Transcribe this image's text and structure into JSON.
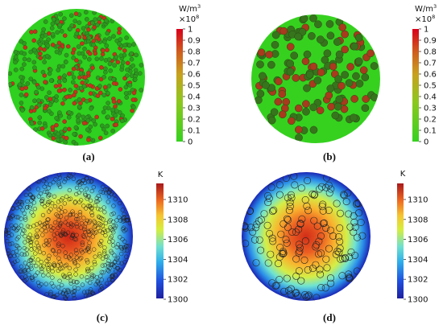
{
  "panels": [
    {
      "id": "a",
      "label": "(a)",
      "unit": "W/m",
      "unit_sup": "3",
      "multiplier": "×10",
      "multiplier_sup": "8",
      "ticks": [
        "1",
        "0.9",
        "0.8",
        "0.7",
        "0.6",
        "0.5",
        "0.4",
        "0.3",
        "0.2",
        "0.1",
        "0"
      ],
      "colors": {
        "background": "#2fd01f",
        "particle_hot": "#c8321e",
        "particle_cool": "#2f9a21"
      }
    },
    {
      "id": "b",
      "label": "(b)",
      "unit": "W/m",
      "unit_sup": "3",
      "multiplier": "×10",
      "multiplier_sup": "8",
      "ticks": [
        "1",
        "0.9",
        "0.8",
        "0.7",
        "0.6",
        "0.5",
        "0.4",
        "0.3",
        "0.2",
        "0.1",
        "0"
      ],
      "colors": {
        "background": "#36d11f",
        "particle_hot": "#a83a1e",
        "particle_cool": "#36751c"
      }
    },
    {
      "id": "c",
      "label": "(c)",
      "unit": "K",
      "ticks": [
        "1310",
        "1308",
        "1306",
        "1304",
        "1302",
        "1300"
      ]
    },
    {
      "id": "d",
      "label": "(d)",
      "unit": "K",
      "ticks": [
        "1310",
        "1308",
        "1306",
        "1304",
        "1302",
        "1300"
      ]
    }
  ]
}
